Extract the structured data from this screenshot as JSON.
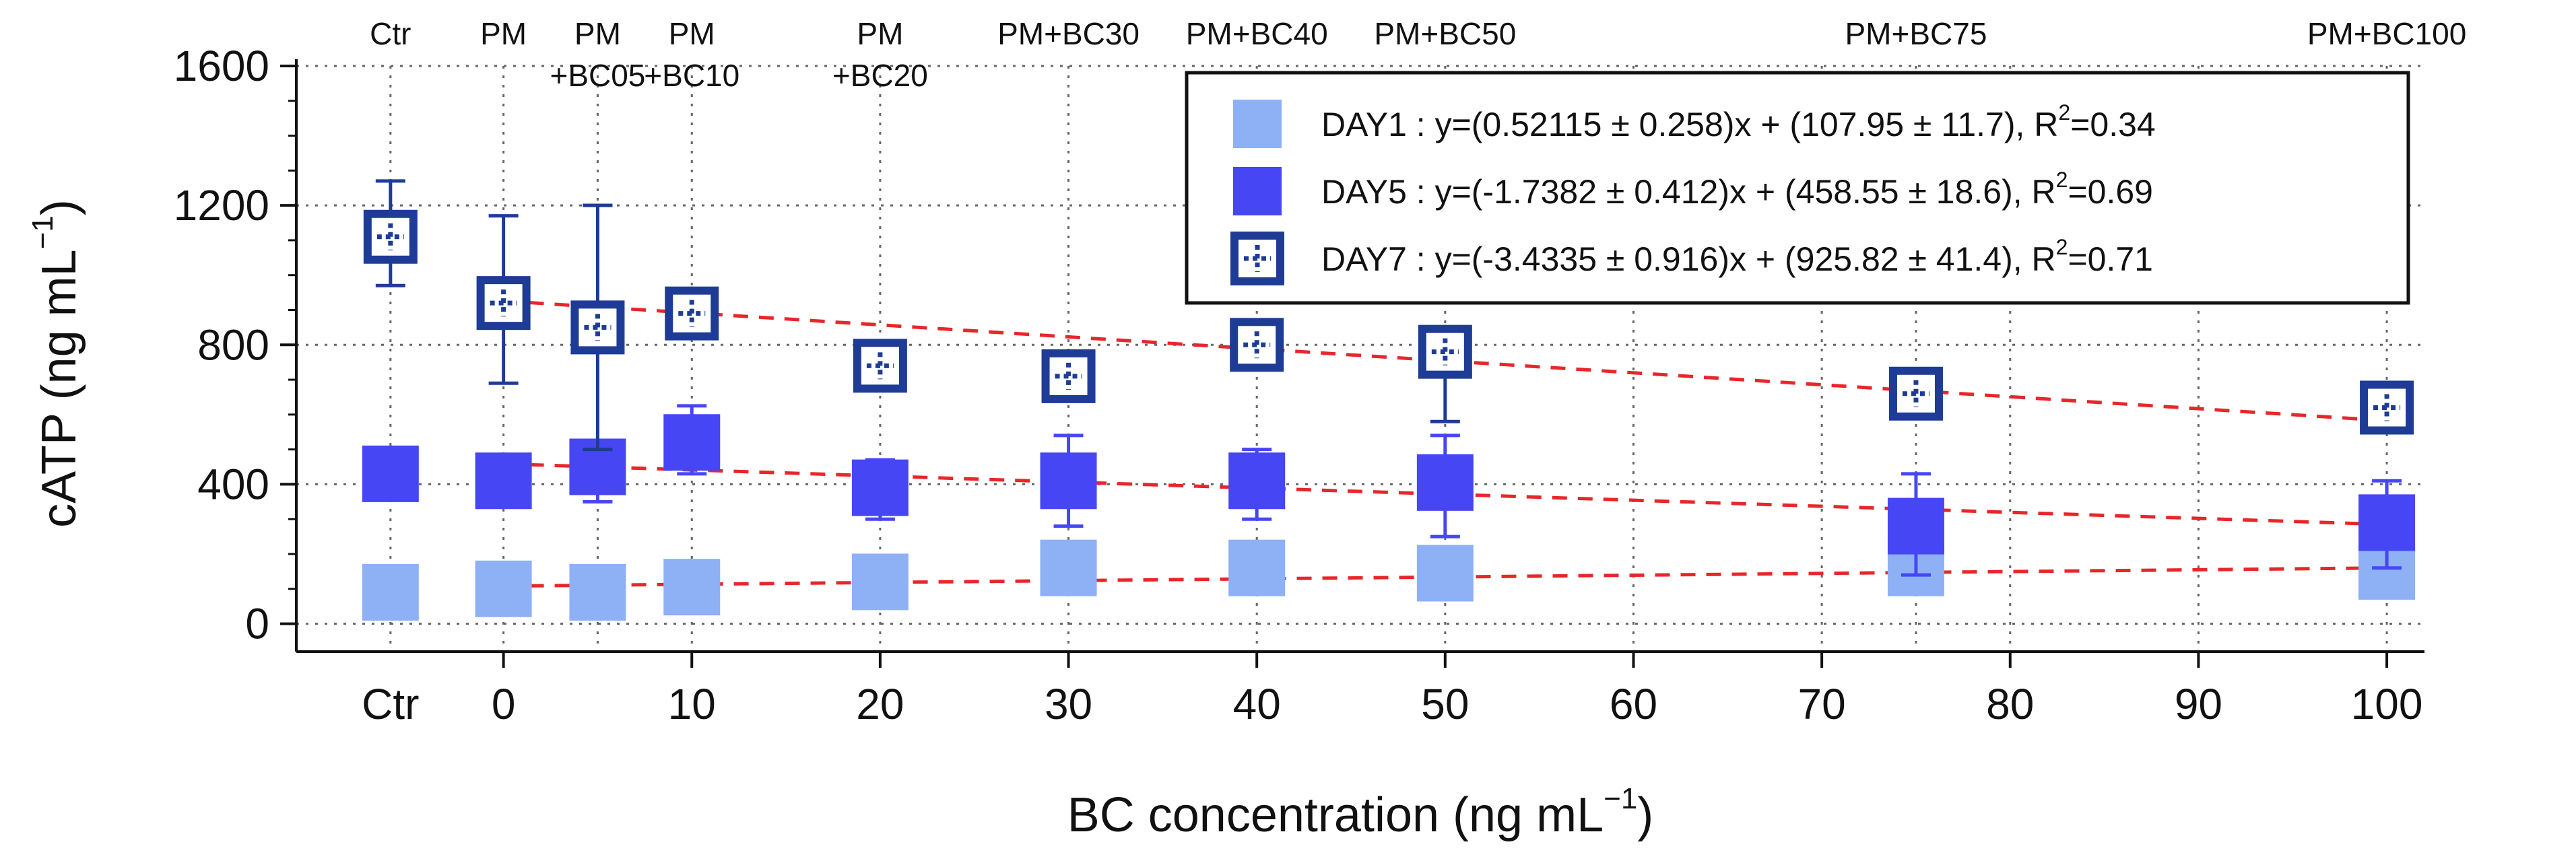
{
  "chart_data": {
    "type": "scatter",
    "title": "",
    "xlabel": "BC concentration (ng mL",
    "xlabel_sup": "−1",
    "xlabel_end": ")",
    "ylabel": "cATP (ng mL",
    "ylabel_sup": "−1",
    "ylabel_end": ")",
    "ylim": [
      -80,
      1600
    ],
    "xlim": [
      -11,
      102
    ],
    "grid": "vertical dotted lines at data columns",
    "ctr_x": -6,
    "x_ticks": [
      0,
      10,
      20,
      30,
      40,
      50,
      60,
      70,
      80,
      90,
      100
    ],
    "x_tick_labels": [
      "0",
      "10",
      "20",
      "30",
      "40",
      "50",
      "60",
      "70",
      "80",
      "90",
      "100"
    ],
    "ctr_tick_label": "Ctr",
    "y_ticks": [
      0,
      400,
      800,
      1200,
      1600
    ],
    "y_tick_labels": [
      "0",
      "400",
      "800",
      "1200",
      "1600"
    ],
    "top_labels": [
      {
        "x": -6,
        "lines": [
          "Ctr"
        ]
      },
      {
        "x": 0,
        "lines": [
          "PM"
        ]
      },
      {
        "x": 5,
        "lines": [
          "PM",
          "+BC05"
        ]
      },
      {
        "x": 10,
        "lines": [
          "PM",
          "+BC10"
        ]
      },
      {
        "x": 20,
        "lines": [
          "PM",
          "+BC20"
        ]
      },
      {
        "x": 30,
        "lines": [
          "PM+BC30"
        ]
      },
      {
        "x": 40,
        "lines": [
          "PM+BC40"
        ]
      },
      {
        "x": 50,
        "lines": [
          "PM+BC50"
        ]
      },
      {
        "x": 75,
        "lines": [
          "PM+BC75"
        ]
      },
      {
        "x": 100,
        "lines": [
          "PM+BC100"
        ]
      }
    ],
    "series": [
      {
        "name": "DAY1",
        "color": "#8eb0f5",
        "marker": "filled-square-light",
        "x": [
          -6,
          0,
          5,
          10,
          20,
          30,
          40,
          50,
          75,
          100
        ],
        "y": [
          90,
          100,
          90,
          105,
          120,
          160,
          160,
          145,
          160,
          150
        ],
        "err_lo": [
          null,
          null,
          null,
          null,
          null,
          null,
          null,
          null,
          null,
          null
        ],
        "err_hi": [
          null,
          null,
          null,
          null,
          null,
          null,
          null,
          null,
          null,
          null
        ],
        "fit": {
          "slope": 0.52115,
          "intercept": 107.95,
          "x_from": 0,
          "x_to": 100
        },
        "legend": "DAY1 :  y=(0.52115 ± 0.258)x + (107.95 ± 11.7), R",
        "r2": "=0.34"
      },
      {
        "name": "DAY5",
        "color": "#4646f5",
        "marker": "filled-square",
        "x": [
          -6,
          0,
          5,
          10,
          20,
          30,
          40,
          50,
          75,
          100
        ],
        "y": [
          430,
          410,
          450,
          520,
          390,
          410,
          410,
          405,
          280,
          290
        ],
        "err_lo": [
          null,
          null,
          350,
          430,
          300,
          280,
          300,
          250,
          140,
          160
        ],
        "err_hi": [
          null,
          null,
          1200,
          625,
          470,
          540,
          500,
          540,
          430,
          410
        ],
        "fit": {
          "slope": -1.7382,
          "intercept": 458.55,
          "x_from": 0,
          "x_to": 100
        },
        "legend": "DAY5 :  y=(-1.7382 ± 0.412)x + (458.55 ± 18.6), R",
        "r2": "=0.69"
      },
      {
        "name": "DAY7",
        "color": "#1e3c96",
        "marker": "hollow-square-cross",
        "x": [
          -6,
          0,
          5,
          10,
          20,
          30,
          40,
          50,
          75,
          100
        ],
        "y": [
          1110,
          920,
          850,
          890,
          740,
          710,
          800,
          780,
          660,
          620
        ],
        "err_lo": [
          970,
          690,
          500,
          null,
          null,
          null,
          null,
          580,
          null,
          null
        ],
        "err_hi": [
          1270,
          1170,
          1200,
          null,
          null,
          null,
          null,
          null,
          null,
          null
        ],
        "fit": {
          "slope": -3.4335,
          "intercept": 925.82,
          "x_from": 0,
          "x_to": 100
        },
        "legend": "DAY7 :  y=(-3.4335 ± 0.916)x + (925.82 ± 41.4), R",
        "r2": "=0.71"
      }
    ],
    "fit_line_color": "#e8262a",
    "legend_position": "top-right",
    "r2_superscript": "2"
  }
}
